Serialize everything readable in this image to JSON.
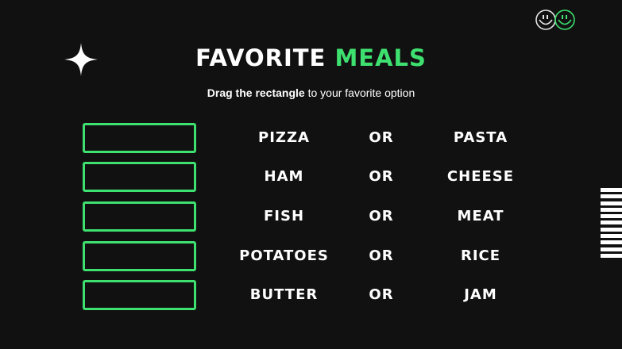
{
  "title": {
    "part1": "FAVORITE",
    "part2": "MEALS"
  },
  "subtitle": {
    "bold": "Drag the rectangle",
    "rest": "to your favorite option"
  },
  "rows": [
    {
      "left": "PIZZA",
      "or": "OR",
      "right": "PASTA"
    },
    {
      "left": "HAM",
      "or": "OR",
      "right": "CHEESE"
    },
    {
      "left": "FISH",
      "or": "OR",
      "right": "MEAT"
    },
    {
      "left": "POTATOES",
      "or": "OR",
      "right": "RICE"
    },
    {
      "left": "BUTTER",
      "or": "OR",
      "right": "JAM"
    }
  ],
  "colors": {
    "accent": "#3ee06f",
    "background": "#111111",
    "text": "#ffffff"
  },
  "icons": {
    "logo": "double-smiley-icon",
    "star": "sparkle-star-icon",
    "decoration": "stripes-decoration"
  }
}
